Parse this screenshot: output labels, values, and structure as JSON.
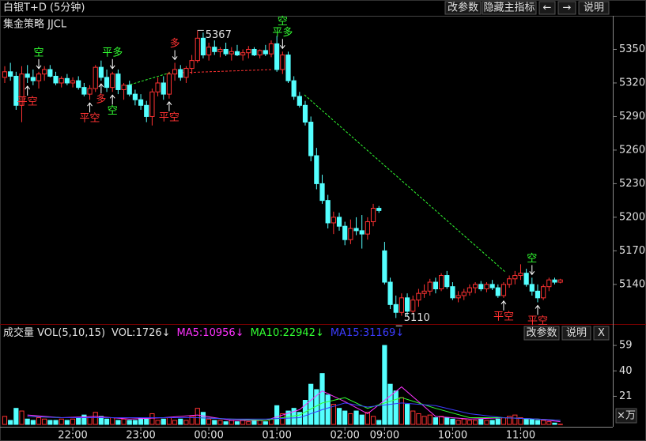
{
  "toolbar": {
    "title": "白银T+D (5分钟)",
    "buttons": [
      "改参数",
      "隐藏主指标",
      "←",
      "→",
      "说明"
    ]
  },
  "indicator_name": "集金策略 JJCL",
  "volume_toolbar": {
    "label": "成交量 VOL(5,10,15)",
    "current": "VOL:1726↓",
    "buttons": [
      "改参数",
      "说明",
      "X"
    ]
  },
  "chart_data": [
    {
      "type": "candlestick",
      "open": [
        5325,
        5330,
        5326,
        5300,
        5328,
        5325,
        5322,
        5328,
        5332,
        5326,
        5320,
        5324,
        5320,
        5322,
        5316,
        5310,
        5315,
        5334,
        5325,
        5316,
        5328,
        5314,
        5318,
        5310,
        5305,
        5300,
        5290,
        5312,
        5320,
        5310,
        5328,
        5332,
        5325,
        5333,
        5340,
        5360,
        5345,
        5352,
        5348,
        5350,
        5346,
        5348,
        5345,
        5347,
        5350,
        5345,
        5349,
        5346,
        5355,
        5332,
        5345,
        5322,
        5308,
        5300,
        5285,
        5255,
        5230,
        5215,
        5195,
        5200,
        5192,
        5180,
        5190,
        5188,
        5185,
        5196,
        5208,
        5170,
        5142,
        5122,
        5115,
        5128,
        5116,
        5126,
        5132,
        5134,
        5142,
        5136,
        5148,
        5138,
        5128,
        5130,
        5133,
        5137,
        5140,
        5136,
        5140,
        5137,
        5130,
        5140,
        5145,
        5148,
        5150,
        5140,
        5134,
        5128,
        5138,
        5144,
        5142
      ],
      "high": [
        5335,
        5338,
        5330,
        5335,
        5336,
        5332,
        5330,
        5335,
        5336,
        5330,
        5326,
        5328,
        5325,
        5326,
        5320,
        5318,
        5336,
        5340,
        5332,
        5330,
        5332,
        5320,
        5322,
        5314,
        5310,
        5304,
        5315,
        5325,
        5326,
        5330,
        5338,
        5336,
        5335,
        5345,
        5367,
        5365,
        5356,
        5358,
        5352,
        5356,
        5352,
        5354,
        5350,
        5353,
        5352,
        5350,
        5354,
        5358,
        5362,
        5348,
        5348,
        5326,
        5312,
        5304,
        5290,
        5262,
        5238,
        5220,
        5205,
        5204,
        5196,
        5198,
        5200,
        5202,
        5200,
        5212,
        5210,
        5178,
        5146,
        5130,
        5132,
        5132,
        5130,
        5136,
        5140,
        5145,
        5146,
        5150,
        5152,
        5142,
        5134,
        5136,
        5140,
        5142,
        5143,
        5142,
        5144,
        5140,
        5142,
        5148,
        5152,
        5158,
        5154,
        5146,
        5140,
        5140,
        5146,
        5146,
        5145
      ],
      "low": [
        5320,
        5322,
        5296,
        5285,
        5320,
        5318,
        5315,
        5322,
        5325,
        5318,
        5316,
        5318,
        5316,
        5314,
        5308,
        5305,
        5312,
        5322,
        5312,
        5312,
        5310,
        5305,
        5308,
        5300,
        5296,
        5285,
        5282,
        5308,
        5305,
        5306,
        5322,
        5322,
        5320,
        5328,
        5338,
        5342,
        5340,
        5345,
        5343,
        5344,
        5340,
        5344,
        5340,
        5342,
        5344,
        5342,
        5344,
        5343,
        5330,
        5328,
        5320,
        5305,
        5298,
        5282,
        5250,
        5225,
        5212,
        5190,
        5185,
        5188,
        5175,
        5176,
        5184,
        5172,
        5180,
        5192,
        5204,
        5140,
        5118,
        5110,
        5112,
        5112,
        5114,
        5120,
        5128,
        5130,
        5132,
        5134,
        5136,
        5126,
        5124,
        5126,
        5130,
        5132,
        5134,
        5133,
        5135,
        5128,
        5128,
        5137,
        5140,
        5144,
        5138,
        5130,
        5124,
        5126,
        5134,
        5140,
        5141
      ],
      "close": [
        5330,
        5326,
        5300,
        5328,
        5325,
        5322,
        5328,
        5332,
        5326,
        5320,
        5324,
        5320,
        5322,
        5316,
        5310,
        5315,
        5334,
        5325,
        5316,
        5328,
        5314,
        5318,
        5310,
        5305,
        5300,
        5290,
        5312,
        5320,
        5310,
        5328,
        5332,
        5325,
        5333,
        5340,
        5360,
        5345,
        5352,
        5348,
        5350,
        5346,
        5348,
        5345,
        5347,
        5350,
        5345,
        5349,
        5346,
        5355,
        5332,
        5345,
        5322,
        5308,
        5300,
        5285,
        5255,
        5230,
        5215,
        5195,
        5200,
        5192,
        5180,
        5190,
        5188,
        5185,
        5196,
        5208,
        5206,
        5142,
        5122,
        5115,
        5128,
        5116,
        5126,
        5132,
        5134,
        5142,
        5136,
        5148,
        5138,
        5128,
        5130,
        5133,
        5137,
        5140,
        5136,
        5140,
        5137,
        5130,
        5140,
        5145,
        5148,
        5150,
        5140,
        5134,
        5128,
        5138,
        5144,
        5142,
        5144
      ],
      "up_color": "#ff3232",
      "down_color": "#54ffff",
      "ylim": [
        5106,
        5380
      ],
      "yticks": [
        5350,
        5320,
        5290,
        5260,
        5230,
        5200,
        5170,
        5140
      ],
      "extreme_labels": [
        {
          "index": 34,
          "value": 5367,
          "at": "high"
        },
        {
          "index": 69,
          "value": 5110,
          "at": "low"
        }
      ],
      "signals": [
        {
          "text": "空",
          "index": 6,
          "pos": "above",
          "color": "#32ff32"
        },
        {
          "text": "平空",
          "index": 4,
          "pos": "below",
          "color": "#ff3232"
        },
        {
          "text": "平多",
          "index": 19,
          "pos": "above",
          "color": "#32ff32"
        },
        {
          "text": "平空",
          "index": 15,
          "pos": "below",
          "color": "#ff3232"
        },
        {
          "text": "多",
          "index": 17,
          "pos": "below",
          "color": "#ff3232"
        },
        {
          "text": "空",
          "index": 19,
          "pos": "below",
          "color": "#32ff32"
        },
        {
          "text": "多",
          "index": 30,
          "pos": "above",
          "color": "#ff3232"
        },
        {
          "text": "平空",
          "index": 29,
          "pos": "below",
          "color": "#ff3232"
        },
        {
          "text": "平多",
          "index": 49,
          "pos": "above",
          "color": "#32ff32"
        },
        {
          "text": "空",
          "index": 49,
          "pos": "above",
          "color": "#32ff32"
        },
        {
          "text": "平空",
          "index": 88,
          "pos": "below",
          "color": "#ff3232"
        },
        {
          "text": "空",
          "index": 93,
          "pos": "above",
          "color": "#32ff32"
        },
        {
          "text": "平空",
          "index": 94,
          "pos": "below",
          "color": "#ff3232"
        }
      ]
    },
    {
      "type": "bar",
      "categories": [
        null,
        null,
        null,
        null,
        null,
        null,
        null,
        null,
        null,
        null,
        null,
        null,
        "22:00",
        null,
        null,
        null,
        null,
        null,
        null,
        null,
        null,
        null,
        null,
        null,
        "23:00",
        null,
        null,
        null,
        null,
        null,
        null,
        null,
        null,
        null,
        null,
        null,
        "00:00",
        null,
        null,
        null,
        null,
        null,
        null,
        null,
        null,
        null,
        null,
        null,
        "01:00",
        null,
        null,
        null,
        null,
        null,
        null,
        null,
        null,
        null,
        null,
        null,
        "02:00",
        null,
        null,
        null,
        null,
        null,
        null,
        "09:00",
        null,
        null,
        null,
        null,
        null,
        null,
        null,
        null,
        null,
        null,
        null,
        "10:00",
        null,
        null,
        null,
        null,
        null,
        null,
        null,
        null,
        null,
        null,
        null,
        "11:00",
        null,
        null,
        null,
        null,
        null,
        null,
        null
      ],
      "values": [
        6,
        3,
        12,
        10,
        4,
        3,
        5,
        4,
        3,
        3,
        4,
        3,
        4,
        5,
        7,
        5,
        9,
        6,
        4,
        5,
        3,
        4,
        3,
        3,
        5,
        4,
        8,
        3,
        4,
        5,
        3,
        4,
        3,
        6,
        12,
        9,
        4,
        3,
        3,
        2,
        3,
        2,
        3,
        2,
        3,
        3,
        2,
        4,
        14,
        8,
        10,
        12,
        9,
        18,
        30,
        26,
        38,
        22,
        15,
        12,
        10,
        8,
        10,
        7,
        9,
        6,
        3,
        59,
        30,
        25,
        20,
        15,
        10,
        8,
        6,
        7,
        5,
        6,
        5,
        4,
        3,
        4,
        3,
        3,
        4,
        3,
        3,
        4,
        5,
        6,
        7,
        5,
        4,
        4,
        3,
        3,
        2,
        1,
        0.17
      ],
      "ylim": [
        0,
        62
      ],
      "yticks": [
        59,
        40,
        21
      ],
      "y_unit_label": "×万",
      "series": [
        {
          "name": "MA5:10956↓",
          "color": "#ff32ff",
          "x": [
            4,
            10,
            16,
            22,
            28,
            34,
            40,
            46,
            52,
            56,
            60,
            64,
            70,
            76,
            82,
            88,
            94,
            98
          ],
          "values": [
            7,
            5,
            6,
            4,
            5,
            7,
            3,
            3,
            11,
            25,
            17,
            8,
            28,
            6,
            4,
            5,
            4,
            2
          ]
        },
        {
          "name": "MA10:22942↓",
          "color": "#32ff32",
          "x": [
            4,
            10,
            16,
            22,
            28,
            34,
            40,
            46,
            52,
            56,
            60,
            64,
            70,
            76,
            82,
            88,
            94,
            98
          ],
          "values": [
            6,
            5,
            5,
            5,
            5,
            5,
            4,
            3,
            7,
            16,
            20,
            12,
            20,
            12,
            5,
            5,
            4,
            3
          ]
        },
        {
          "name": "MA15:31169↓",
          "color": "#3c3cff",
          "x": [
            4,
            10,
            16,
            22,
            28,
            34,
            40,
            46,
            52,
            56,
            60,
            64,
            70,
            76,
            82,
            88,
            94,
            98
          ],
          "values": [
            6,
            5,
            5,
            5,
            5,
            5,
            4,
            4,
            5,
            11,
            16,
            13,
            16,
            14,
            8,
            5,
            4,
            3
          ]
        }
      ]
    }
  ]
}
